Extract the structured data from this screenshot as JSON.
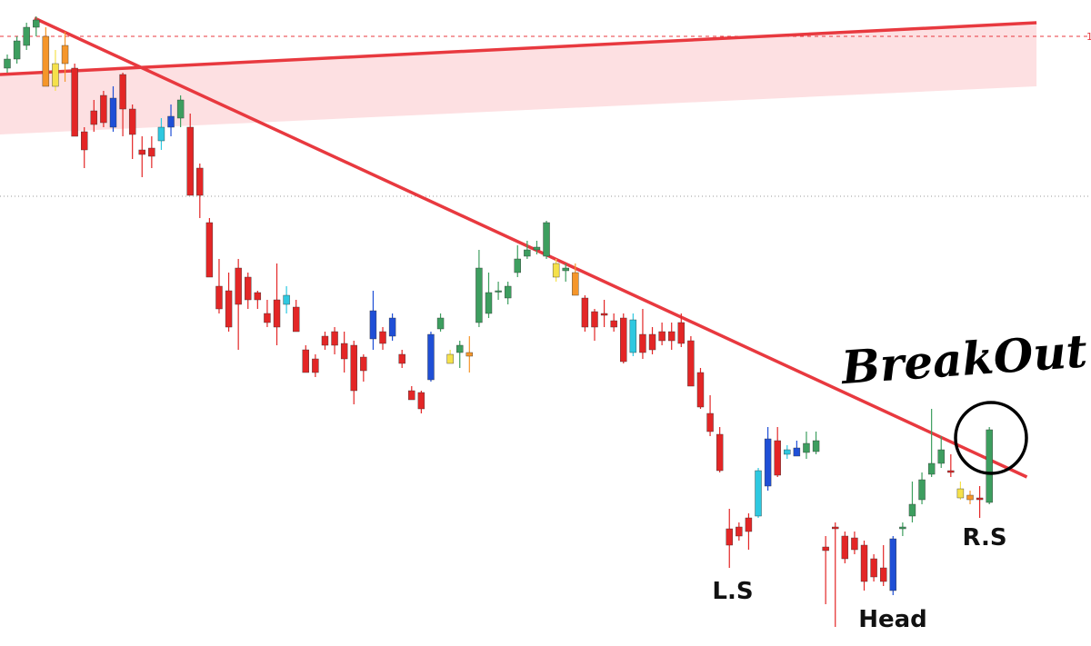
{
  "chart_data": {
    "type": "candlestick",
    "categories": [
      null,
      null,
      null,
      null,
      null,
      null,
      null,
      null,
      null,
      null,
      null,
      null,
      null,
      null,
      null,
      null,
      null,
      null,
      null,
      null,
      null,
      null,
      null,
      null,
      null,
      null,
      null,
      null,
      null,
      null,
      null,
      null,
      null,
      null,
      null,
      null,
      null,
      null,
      null,
      null,
      null,
      null,
      null,
      null,
      null,
      null,
      null,
      null,
      null,
      null,
      null,
      null,
      null,
      null,
      null,
      null,
      null,
      null,
      null,
      null,
      null,
      null,
      null,
      null,
      null,
      null,
      null,
      null,
      null,
      null,
      null,
      null,
      null,
      null,
      null,
      null,
      null,
      null,
      null,
      null,
      null,
      null,
      null,
      null,
      null,
      null,
      null,
      null,
      null,
      null,
      null,
      null,
      null,
      null,
      null,
      null,
      null,
      null,
      null,
      null,
      null,
      null,
      null
    ],
    "open": [
      636,
      646,
      661,
      681,
      671,
      641,
      641,
      636,
      566,
      589,
      606,
      571,
      629,
      591,
      546,
      548,
      556,
      571,
      581,
      571,
      526,
      466,
      396,
      391,
      416,
      406,
      389,
      366,
      381,
      376,
      373,
      326,
      316,
      341,
      346,
      333,
      331,
      318,
      338,
      346,
      341,
      321,
      281,
      279,
      293,
      349,
      321,
      323,
      323,
      356,
      366,
      391,
      383,
      411,
      429,
      436,
      429,
      421,
      413,
      411,
      383,
      368,
      366,
      358,
      361,
      323,
      343,
      343,
      346,
      346,
      356,
      336,
      301,
      256,
      233,
      129,
      131,
      141,
      143,
      176,
      226,
      216,
      218,
      213,
      214,
      109,
      131,
      121,
      119,
      111,
      96,
      86,
      61,
      129,
      143,
      161,
      189,
      201,
      193,
      173,
      166,
      163,
      158
    ],
    "high": [
      651,
      671,
      686,
      693,
      681,
      656,
      676,
      641,
      571,
      601,
      611,
      616,
      631,
      596,
      561,
      561,
      581,
      596,
      606,
      586,
      531,
      471,
      426,
      411,
      426,
      411,
      391,
      381,
      421,
      396,
      381,
      331,
      321,
      346,
      351,
      346,
      336,
      321,
      391,
      351,
      366,
      326,
      286,
      281,
      346,
      366,
      326,
      336,
      341,
      436,
      411,
      401,
      401,
      441,
      446,
      446,
      468,
      426,
      421,
      421,
      386,
      371,
      381,
      366,
      366,
      366,
      371,
      351,
      356,
      356,
      366,
      341,
      306,
      276,
      241,
      151,
      136,
      146,
      196,
      241,
      241,
      221,
      226,
      236,
      236,
      121,
      136,
      126,
      126,
      116,
      101,
      111,
      121,
      136,
      181,
      191,
      261,
      231,
      211,
      181,
      171,
      176,
      241
    ],
    "low": [
      631,
      641,
      656,
      671,
      616,
      611,
      621,
      561,
      526,
      566,
      571,
      566,
      561,
      536,
      516,
      526,
      546,
      561,
      571,
      496,
      471,
      406,
      366,
      346,
      326,
      371,
      371,
      351,
      331,
      366,
      346,
      301,
      296,
      326,
      321,
      301,
      266,
      291,
      326,
      326,
      336,
      306,
      271,
      256,
      291,
      346,
      311,
      306,
      301,
      351,
      361,
      381,
      376,
      406,
      426,
      431,
      426,
      401,
      401,
      386,
      346,
      336,
      351,
      346,
      311,
      319,
      316,
      321,
      331,
      326,
      329,
      286,
      261,
      231,
      191,
      86,
      116,
      106,
      141,
      171,
      186,
      206,
      209,
      206,
      211,
      46,
      21,
      91,
      101,
      61,
      71,
      66,
      56,
      121,
      136,
      156,
      186,
      196,
      186,
      161,
      156,
      141,
      156
    ],
    "close": [
      646,
      666,
      681,
      689,
      616,
      616,
      661,
      561,
      546,
      574,
      576,
      603,
      591,
      563,
      541,
      539,
      571,
      583,
      601,
      496,
      496,
      406,
      371,
      351,
      376,
      381,
      381,
      356,
      351,
      386,
      346,
      301,
      301,
      331,
      331,
      316,
      281,
      303,
      369,
      333,
      361,
      311,
      271,
      261,
      343,
      361,
      311,
      331,
      319,
      416,
      389,
      391,
      396,
      426,
      436,
      439,
      466,
      406,
      416,
      386,
      351,
      351,
      364,
      351,
      313,
      359,
      323,
      326,
      336,
      336,
      333,
      286,
      263,
      236,
      193,
      111,
      121,
      126,
      193,
      228,
      188,
      211,
      209,
      223,
      226,
      105,
      129,
      96,
      106,
      71,
      76,
      71,
      118,
      131,
      156,
      183,
      201,
      216,
      191,
      163,
      161,
      161,
      238
    ],
    "colors": [
      "#3d9e5f",
      "#3d9e5f",
      "#3d9e5f",
      "#3d9e5f",
      "#f5962a",
      "#f5e14a",
      "#f5962a",
      "#e32626",
      "#e32626",
      "#e32626",
      "#e32626",
      "#1f4fd6",
      "#e32626",
      "#e32626",
      "#e32626",
      "#e32626",
      "#2ec8e0",
      "#1f4fd6",
      "#3d9e5f",
      "#e32626",
      "#e32626",
      "#e32626",
      "#e32626",
      "#e32626",
      "#e32626",
      "#e32626",
      "#e32626",
      "#e32626",
      "#e32626",
      "#2ec8e0",
      "#e32626",
      "#e32626",
      "#e32626",
      "#e32626",
      "#e32626",
      "#e32626",
      "#e32626",
      "#e32626",
      "#1f4fd6",
      "#e32626",
      "#1f4fd6",
      "#e32626",
      "#e32626",
      "#e32626",
      "#1f4fd6",
      "#3d9e5f",
      "#f5e14a",
      "#3d9e5f",
      "#f5962a",
      "#3d9e5f",
      "#3d9e5f",
      "#3d9e5f",
      "#3d9e5f",
      "#3d9e5f",
      "#3d9e5f",
      "#3d9e5f",
      "#3d9e5f",
      "#f5e14a",
      "#3d9e5f",
      "#f5962a",
      "#e32626",
      "#e32626",
      "#e32626",
      "#e32626",
      "#e32626",
      "#2ec8e0",
      "#e32626",
      "#e32626",
      "#e32626",
      "#e32626",
      "#e32626",
      "#e32626",
      "#e32626",
      "#e32626",
      "#e32626",
      "#e32626",
      "#e32626",
      "#e32626",
      "#2ec8e0",
      "#1f4fd6",
      "#e32626",
      "#2ec8e0",
      "#1f4fd6",
      "#3d9e5f",
      "#3d9e5f",
      "#e32626",
      "#e32626",
      "#e32626",
      "#e32626",
      "#e32626",
      "#e32626",
      "#e32626",
      "#1f4fd6",
      "#3d9e5f",
      "#3d9e5f",
      "#3d9e5f",
      "#3d9e5f",
      "#3d9e5f",
      "#e32626",
      "#f5e14a",
      "#f5962a",
      "#e32626",
      "#3d9e5f"
    ],
    "ylim": [
      0,
      711
    ],
    "zones": [
      {
        "color": "#fde0e2",
        "upper": [
          [
            -0.76,
            629
          ],
          [
            106.9,
            686
          ]
        ],
        "lower": [
          [
            -0.76,
            563
          ],
          [
            106.9,
            616
          ]
        ]
      }
    ],
    "trendlines": [
      {
        "color": "#e8393f",
        "points": [
          [
            2.83,
            691
          ],
          [
            105.9,
            186
          ]
        ]
      },
      {
        "color": "#e8393f",
        "points": [
          [
            -0.76,
            629
          ],
          [
            106.9,
            686
          ]
        ]
      }
    ],
    "hlines": [
      {
        "value": 671,
        "color": "#e8393f",
        "dash": "4 4"
      },
      {
        "value": 495,
        "color": "#999999",
        "dash": "1 3"
      }
    ],
    "price_label": "1",
    "annotations": [
      "BreakOut!",
      "L.S",
      "Head",
      "R.S"
    ]
  }
}
